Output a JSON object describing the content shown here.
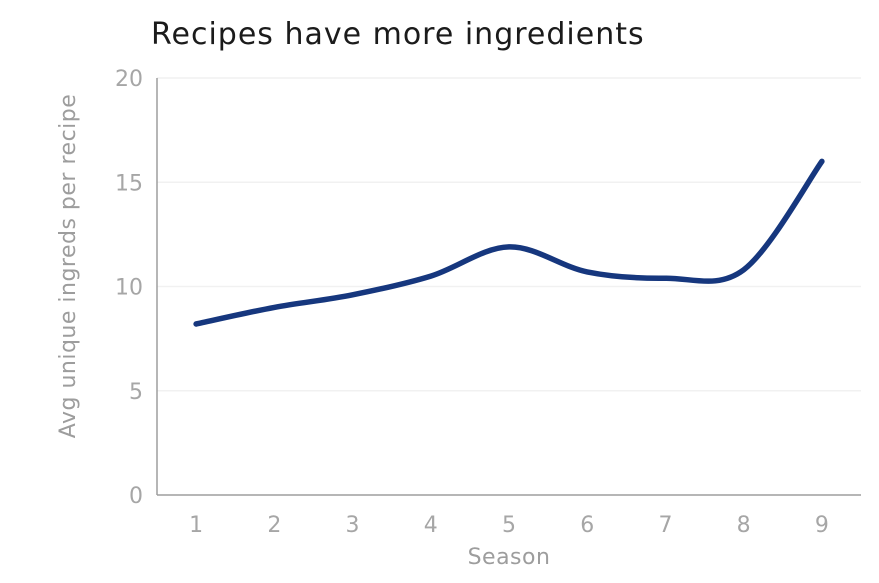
{
  "chart_data": {
    "type": "line",
    "title": "Recipes have more ingredients",
    "xlabel": "Season",
    "ylabel": "Avg unique ingreds per recipe",
    "x": [
      1,
      2,
      3,
      4,
      5,
      6,
      7,
      8,
      9
    ],
    "series": [
      {
        "name": "Avg unique ingreds per recipe",
        "values": [
          8.2,
          9.0,
          9.6,
          10.5,
          11.9,
          10.7,
          10.4,
          10.8,
          16.0
        ]
      }
    ],
    "ylim": [
      0,
      20
    ],
    "yticks": [
      0,
      5,
      10,
      15,
      20
    ],
    "grid": true,
    "smooth": true,
    "legend_position": "none",
    "colors": {
      "line": "#16377e",
      "axis": "#9d9d9d",
      "tick_text": "#a6a6a6",
      "axis_title_text": "#9d9d9d",
      "gridline": "#f1f1f1",
      "title_text": "#1b1b1b",
      "background": "#ffffff"
    }
  }
}
